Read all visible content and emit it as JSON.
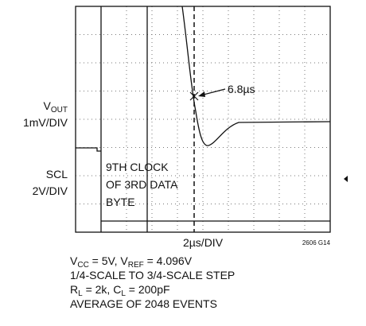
{
  "labels": {
    "vout": {
      "main": "V",
      "sub": "OUT"
    },
    "vout_scale": "1mV/DIV",
    "scl": "SCL",
    "scl_scale": "2V/DIV"
  },
  "annotation": {
    "clock": [
      "9TH CLOCK",
      "OF 3RD DATA",
      "BYTE"
    ],
    "time": "6.8µs"
  },
  "x_scale": "2µs/DIV",
  "figure_id": "2606 G14",
  "conditions": {
    "line1": [
      "V",
      "CC",
      " = 5V, V",
      "REF",
      " = 4.096V"
    ],
    "line2": "1/4-SCALE TO 3/4-SCALE STEP",
    "line3": [
      "R",
      "L",
      " = 2k, C",
      "L",
      " = 200pF"
    ],
    "line4": "AVERAGE OF 2048 EVENTS"
  }
}
